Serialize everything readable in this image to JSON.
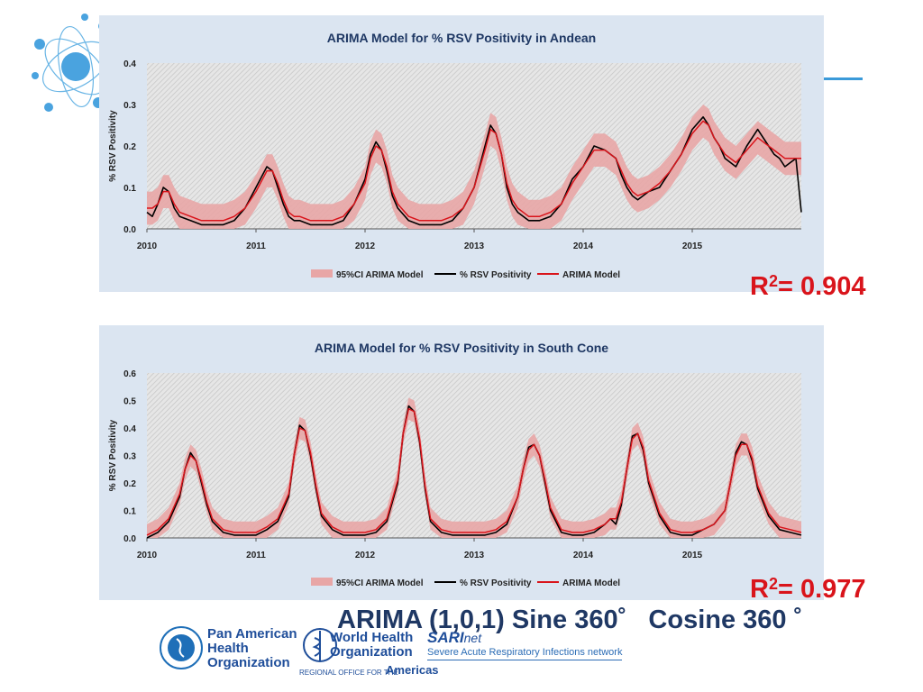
{
  "r2": {
    "andean": "= 0.904",
    "south": "= 0.977",
    "prefix": "R",
    "sup": "2"
  },
  "model_title": {
    "part1": "ARIMA (1,0,1) Sine 360˚",
    "part2": "Cosine 360 ˚"
  },
  "logos": {
    "paho": [
      "Pan American",
      "Health",
      "Organization"
    ],
    "who": [
      "World Health",
      "Organization"
    ],
    "who_regional": "REGIONAL OFFICE FOR THE",
    "americas": "Americas",
    "sari": "SARI",
    "net": "net",
    "sari_sub": "Severe Acute Respiratory Infections network"
  },
  "colors": {
    "observed": "#000000",
    "model": "#d9141b",
    "ci": "#e8a6a6",
    "panel_bg": "#dbe5f1",
    "plot_bg": "#d8d8d8",
    "title": "#1f3864"
  },
  "chart_data": [
    {
      "type": "line",
      "title": "ARIMA Model for % RSV Positivity in Andean",
      "ylabel": "% RSV Positivity",
      "xlim": [
        2010,
        2016
      ],
      "ylim": [
        0,
        0.4
      ],
      "yticks": [
        "0.0",
        "0.1",
        "0.2",
        "0.3",
        "0.4"
      ],
      "xticks": [
        "2010",
        "2011",
        "2012",
        "2013",
        "2014",
        "2015"
      ],
      "legend": [
        "95%CI ARIMA Model",
        "% RSV Positivity",
        "ARIMA Model"
      ],
      "legend_position": "bottom",
      "x": [
        2010.0,
        2010.05,
        2010.1,
        2010.15,
        2010.2,
        2010.25,
        2010.3,
        2010.4,
        2010.5,
        2010.6,
        2010.7,
        2010.8,
        2010.9,
        2011.0,
        2011.1,
        2011.15,
        2011.2,
        2011.25,
        2011.3,
        2011.35,
        2011.4,
        2011.5,
        2011.6,
        2011.7,
        2011.8,
        2011.9,
        2012.0,
        2012.05,
        2012.1,
        2012.15,
        2012.2,
        2012.25,
        2012.3,
        2012.4,
        2012.5,
        2012.6,
        2012.7,
        2012.8,
        2012.9,
        2013.0,
        2013.1,
        2013.15,
        2013.2,
        2013.25,
        2013.3,
        2013.35,
        2013.4,
        2013.5,
        2013.6,
        2013.7,
        2013.8,
        2013.9,
        2014.0,
        2014.1,
        2014.2,
        2014.3,
        2014.35,
        2014.4,
        2014.45,
        2014.5,
        2014.6,
        2014.7,
        2014.8,
        2014.9,
        2015.0,
        2015.1,
        2015.15,
        2015.2,
        2015.25,
        2015.3,
        2015.4,
        2015.5,
        2015.6,
        2015.7,
        2015.75,
        2015.8,
        2015.85,
        2015.9,
        2015.95,
        2016.0
      ],
      "series": [
        {
          "name": "% RSV Positivity",
          "values": [
            0.04,
            0.03,
            0.06,
            0.1,
            0.09,
            0.05,
            0.03,
            0.02,
            0.01,
            0.01,
            0.01,
            0.02,
            0.05,
            0.1,
            0.15,
            0.14,
            0.1,
            0.06,
            0.03,
            0.02,
            0.02,
            0.01,
            0.01,
            0.01,
            0.02,
            0.06,
            0.12,
            0.18,
            0.21,
            0.19,
            0.14,
            0.08,
            0.05,
            0.02,
            0.01,
            0.01,
            0.01,
            0.02,
            0.05,
            0.1,
            0.2,
            0.25,
            0.23,
            0.18,
            0.1,
            0.06,
            0.04,
            0.02,
            0.02,
            0.03,
            0.06,
            0.12,
            0.15,
            0.2,
            0.19,
            0.17,
            0.13,
            0.1,
            0.08,
            0.07,
            0.09,
            0.1,
            0.14,
            0.18,
            0.24,
            0.27,
            0.25,
            0.22,
            0.2,
            0.17,
            0.15,
            0.2,
            0.24,
            0.2,
            0.18,
            0.17,
            0.15,
            0.16,
            0.17,
            0.04
          ]
        },
        {
          "name": "ARIMA Model",
          "values": [
            0.05,
            0.05,
            0.06,
            0.09,
            0.09,
            0.06,
            0.04,
            0.03,
            0.02,
            0.02,
            0.02,
            0.03,
            0.05,
            0.09,
            0.14,
            0.14,
            0.11,
            0.07,
            0.04,
            0.03,
            0.03,
            0.02,
            0.02,
            0.02,
            0.03,
            0.06,
            0.11,
            0.17,
            0.2,
            0.19,
            0.15,
            0.09,
            0.06,
            0.03,
            0.02,
            0.02,
            0.02,
            0.03,
            0.05,
            0.1,
            0.19,
            0.24,
            0.23,
            0.18,
            0.11,
            0.07,
            0.05,
            0.03,
            0.03,
            0.04,
            0.06,
            0.11,
            0.15,
            0.19,
            0.19,
            0.17,
            0.14,
            0.11,
            0.09,
            0.08,
            0.09,
            0.11,
            0.14,
            0.18,
            0.23,
            0.26,
            0.25,
            0.22,
            0.2,
            0.18,
            0.16,
            0.19,
            0.22,
            0.2,
            0.19,
            0.18,
            0.17,
            0.17,
            0.17,
            0.17
          ]
        }
      ],
      "ci_halfwidth": 0.04
    },
    {
      "type": "line",
      "title": "ARIMA Model for % RSV Positivity in South Cone",
      "ylabel": "% RSV Positivity",
      "xlim": [
        2010,
        2016
      ],
      "ylim": [
        0,
        0.6
      ],
      "yticks": [
        "0.0",
        "0.1",
        "0.2",
        "0.3",
        "0.4",
        "0.5",
        "0.6"
      ],
      "xticks": [
        "2010",
        "2011",
        "2012",
        "2013",
        "2014",
        "2015"
      ],
      "legend": [
        "95%CI ARIMA Model",
        "% RSV Positivity",
        "ARIMA Model"
      ],
      "legend_position": "bottom",
      "x": [
        2010.0,
        2010.1,
        2010.2,
        2010.3,
        2010.35,
        2010.4,
        2010.45,
        2010.5,
        2010.55,
        2010.6,
        2010.7,
        2010.8,
        2010.9,
        2011.0,
        2011.1,
        2011.2,
        2011.3,
        2011.35,
        2011.4,
        2011.45,
        2011.5,
        2011.55,
        2011.6,
        2011.7,
        2011.8,
        2011.9,
        2012.0,
        2012.1,
        2012.2,
        2012.3,
        2012.35,
        2012.4,
        2012.45,
        2012.5,
        2012.55,
        2012.6,
        2012.7,
        2012.8,
        2012.9,
        2013.0,
        2013.1,
        2013.2,
        2013.3,
        2013.4,
        2013.45,
        2013.5,
        2013.55,
        2013.6,
        2013.65,
        2013.7,
        2013.8,
        2013.9,
        2014.0,
        2014.1,
        2014.2,
        2014.25,
        2014.3,
        2014.35,
        2014.4,
        2014.45,
        2014.5,
        2014.55,
        2014.6,
        2014.7,
        2014.8,
        2014.9,
        2015.0,
        2015.1,
        2015.2,
        2015.3,
        2015.35,
        2015.4,
        2015.45,
        2015.5,
        2015.55,
        2015.6,
        2015.7,
        2015.8,
        2015.9,
        2016.0
      ],
      "series": [
        {
          "name": "% RSV Positivity",
          "values": [
            0.0,
            0.02,
            0.06,
            0.15,
            0.25,
            0.31,
            0.28,
            0.2,
            0.12,
            0.06,
            0.02,
            0.01,
            0.01,
            0.01,
            0.03,
            0.06,
            0.15,
            0.3,
            0.41,
            0.39,
            0.3,
            0.18,
            0.08,
            0.03,
            0.01,
            0.01,
            0.01,
            0.02,
            0.06,
            0.2,
            0.38,
            0.48,
            0.46,
            0.35,
            0.18,
            0.06,
            0.02,
            0.01,
            0.01,
            0.01,
            0.01,
            0.02,
            0.05,
            0.15,
            0.25,
            0.33,
            0.34,
            0.3,
            0.2,
            0.1,
            0.02,
            0.01,
            0.01,
            0.02,
            0.05,
            0.07,
            0.05,
            0.12,
            0.25,
            0.37,
            0.38,
            0.32,
            0.2,
            0.08,
            0.02,
            0.01,
            0.01,
            0.03,
            0.05,
            0.1,
            0.2,
            0.31,
            0.35,
            0.34,
            0.28,
            0.18,
            0.08,
            0.03,
            0.02,
            0.01
          ]
        },
        {
          "name": "ARIMA Model",
          "values": [
            0.01,
            0.03,
            0.07,
            0.16,
            0.25,
            0.3,
            0.28,
            0.21,
            0.13,
            0.07,
            0.03,
            0.02,
            0.02,
            0.02,
            0.04,
            0.07,
            0.16,
            0.3,
            0.4,
            0.39,
            0.31,
            0.19,
            0.09,
            0.04,
            0.02,
            0.02,
            0.02,
            0.03,
            0.07,
            0.21,
            0.38,
            0.47,
            0.46,
            0.36,
            0.19,
            0.07,
            0.03,
            0.02,
            0.02,
            0.02,
            0.02,
            0.03,
            0.06,
            0.15,
            0.25,
            0.32,
            0.34,
            0.3,
            0.21,
            0.11,
            0.03,
            0.02,
            0.02,
            0.03,
            0.05,
            0.07,
            0.07,
            0.13,
            0.25,
            0.36,
            0.38,
            0.33,
            0.21,
            0.09,
            0.03,
            0.02,
            0.02,
            0.03,
            0.05,
            0.1,
            0.2,
            0.3,
            0.34,
            0.34,
            0.29,
            0.19,
            0.09,
            0.04,
            0.03,
            0.02
          ]
        }
      ],
      "ci_halfwidth": 0.04
    }
  ]
}
